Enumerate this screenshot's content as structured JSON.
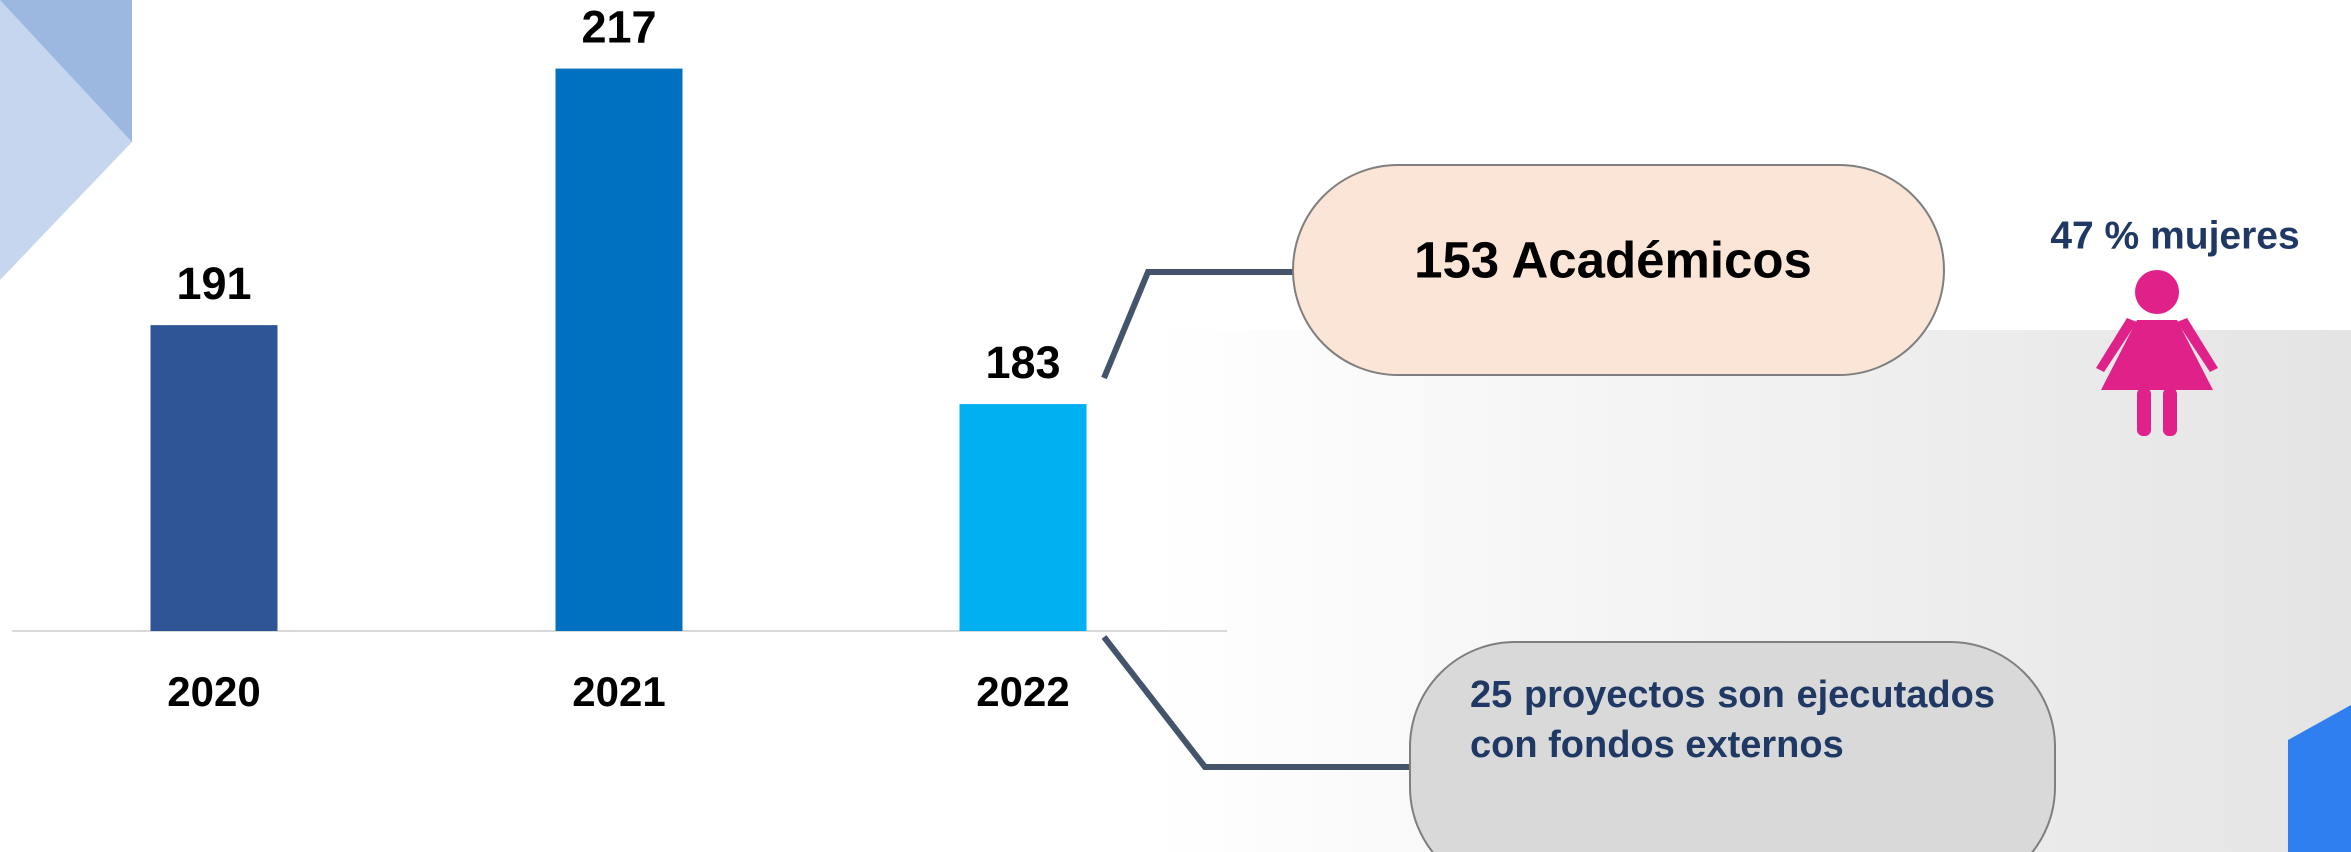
{
  "chart_data": {
    "type": "bar",
    "categories": [
      "2020",
      "2021",
      "2022"
    ],
    "values": [
      191,
      217,
      183
    ],
    "colors": [
      "#2f5597",
      "#0070c0",
      "#00b0f0"
    ],
    "ylim": [
      160,
      220
    ],
    "annotations": {
      "women": "47 % mujeres",
      "academics": "153 Académicos",
      "projects": "25 proyectos son ejecutados con fondos externos"
    }
  }
}
